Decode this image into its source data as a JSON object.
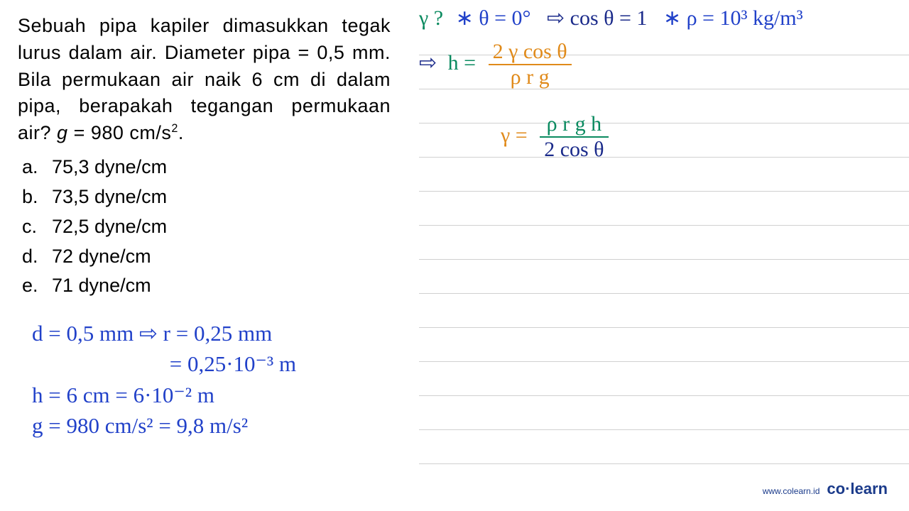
{
  "question": {
    "text_html": "Sebuah pipa kapiler dimasukkan tegak lurus dalam air. Diameter pipa = 0,5 mm. Bila permukaan air naik 6 cm di dalam pipa, berapakah tegangan permukaan air? <span class='ital'>g</span> = 980 cm/s<sup>2</sup>."
  },
  "options": [
    {
      "label": "a.",
      "text": "75,3 dyne/cm"
    },
    {
      "label": "b.",
      "text": "73,5 dyne/cm"
    },
    {
      "label": "c.",
      "text": "72,5 dyne/cm"
    },
    {
      "label": "d.",
      "text": "72 dyne/cm"
    },
    {
      "label": "e.",
      "text": "71 dyne/cm"
    }
  ],
  "handwritten_left": {
    "l1": "d = 0,5 mm ⇨ r = 0,25 mm",
    "l2": "= 0,25·10⁻³ m",
    "l2_indent": "                         ",
    "l3": "h = 6 cm = 6·10⁻² m",
    "l4": "g = 980 cm/s²  = 9,8 m/s²"
  },
  "right_annotations": {
    "a1_green": "γ ?",
    "a1_blue": "∗ θ = 0°",
    "a1_darkblue": "⇨ cos θ = 1",
    "a1_blue2": "∗ ρ = 10³ kg/m³",
    "a2_arrow": "⇨",
    "a2_green": "h =",
    "a2_orange_num": "2 γ cos θ",
    "a2_orange_den": "ρ r g",
    "a3_orange": "γ =",
    "a3_green_num": "ρ r g h",
    "a3_darkblue_den": "2 cos θ"
  },
  "watermark": {
    "url": "www.colearn.id",
    "brand_1": "co",
    "brand_dot": "·",
    "brand_2": "learn"
  },
  "colors": {
    "blue": "#2141c9",
    "green": "#0a8a5f",
    "orange": "#e08a1a",
    "darkblue": "#1a2a8a",
    "line": "#d0d0d0",
    "text": "#000000"
  }
}
